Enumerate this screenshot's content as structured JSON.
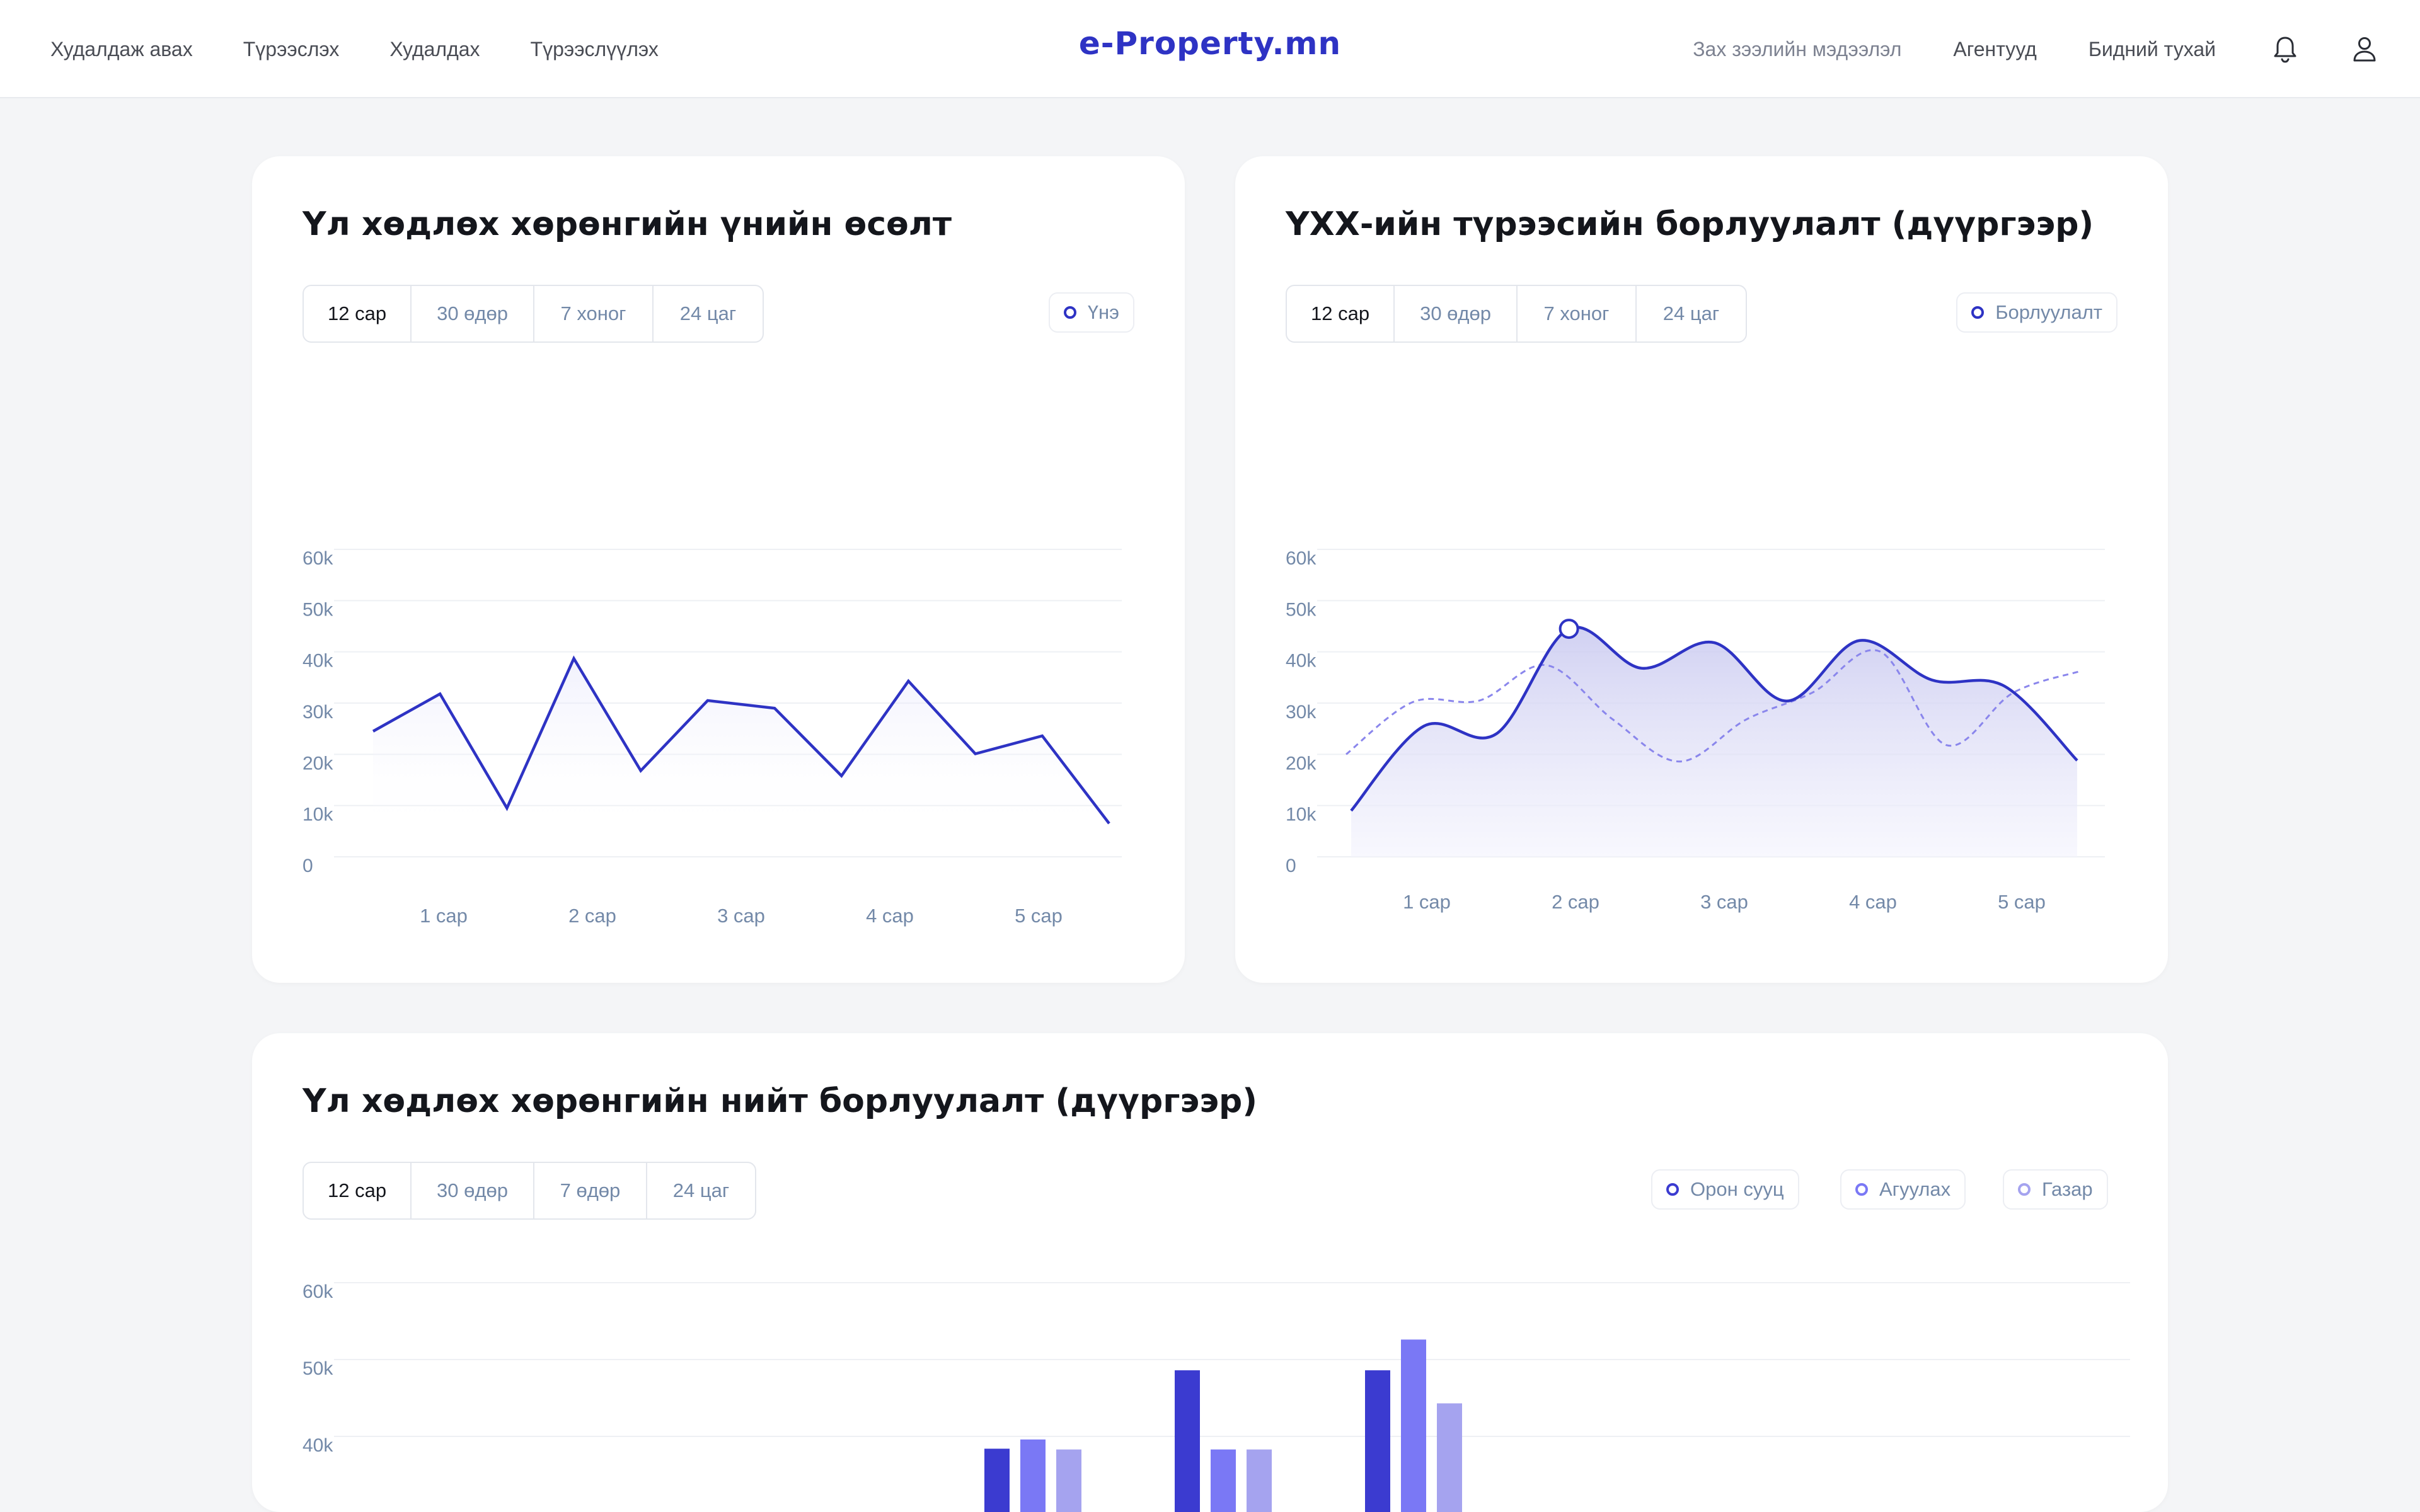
{
  "topbar": {
    "left_links": [
      "Худалдаж авах",
      "Түрээслэх",
      "Худалдах",
      "Түрээслүүлэх"
    ],
    "brand": "e-Property.mn",
    "right_links": [
      "Зах зээлийн мэдээлэл",
      "Агентууд",
      "Бидний тухай"
    ],
    "icons": [
      "bell-icon",
      "user-icon"
    ]
  },
  "card1": {
    "title": "Үл хөдлөх хөрөнгийн үнийн өсөлт",
    "tabs": [
      "12 сар",
      "30 өдөр",
      "7 хоног",
      "24 цаг"
    ],
    "active_tab": "12 сар",
    "legend": "Үнэ"
  },
  "card2": {
    "title": "ҮХХ-ийн түрээсийн борлуулалт (дүүргээр)",
    "tabs": [
      "12 сар",
      "30 өдөр",
      "7 хоног",
      "24 цаг"
    ],
    "active_tab": "12 сар",
    "legend": "Борлуулалт"
  },
  "card3": {
    "title": "Үл хөдлөх хөрөнгийн нийт борлуулалт (дүүргээр)",
    "tabs": [
      "12 сар",
      "30 өдөр",
      "7 өдөр",
      "24 цаг"
    ],
    "active_tab": "12 сар",
    "legends": [
      "Орон сууц",
      "Агуулах",
      "Газар"
    ]
  },
  "colors": {
    "accent": "#2e33c4",
    "series_1": "#3b3bd0",
    "series_2": "#7a78f5",
    "series_3": "#a5a3ef",
    "muted_text": "#7389a8"
  },
  "chart_data": [
    {
      "type": "line",
      "ylim": [
        0,
        60000
      ],
      "y_ticks": [
        "0",
        "10k",
        "20k",
        "30k",
        "40k",
        "50k",
        "60k"
      ],
      "x_ticks": [
        "1 сар",
        "2 сар",
        "3 сар",
        "4 сар",
        "5 сар"
      ],
      "series": [
        {
          "name": "Үнэ",
          "values": [
            24500,
            31800,
            9500,
            38700,
            16800,
            30500,
            29000,
            15800,
            34300,
            20100,
            23600,
            6500
          ]
        }
      ]
    },
    {
      "type": "area",
      "ylim": [
        0,
        60000
      ],
      "y_ticks": [
        "0",
        "10k",
        "20k",
        "30k",
        "40k",
        "50k",
        "60k"
      ],
      "x_ticks": [
        "1 сар",
        "2 сар",
        "3 сар",
        "4 сар",
        "5 сар"
      ],
      "series": [
        {
          "name": "Борлуулалт",
          "values": [
            9000,
            25500,
            24000,
            44500,
            36800,
            41800,
            30400,
            42200,
            34500,
            33300,
            18800
          ]
        },
        {
          "values": [
            20000,
            30200,
            30500,
            37400,
            26800,
            18600,
            26800,
            32100,
            40100,
            21800,
            32000,
            36200
          ]
        }
      ]
    },
    {
      "type": "bar",
      "ylim": [
        40000,
        60000
      ],
      "y_ticks": [
        "40k",
        "50k",
        "60k"
      ],
      "series": [
        {
          "name": "Орон сууц",
          "values": [
            38400,
            48600,
            48600
          ]
        },
        {
          "name": "Агуулах",
          "values": [
            39600,
            38300,
            52600
          ]
        },
        {
          "name": "Газар",
          "values": [
            38300,
            38300,
            44300
          ]
        }
      ]
    }
  ]
}
